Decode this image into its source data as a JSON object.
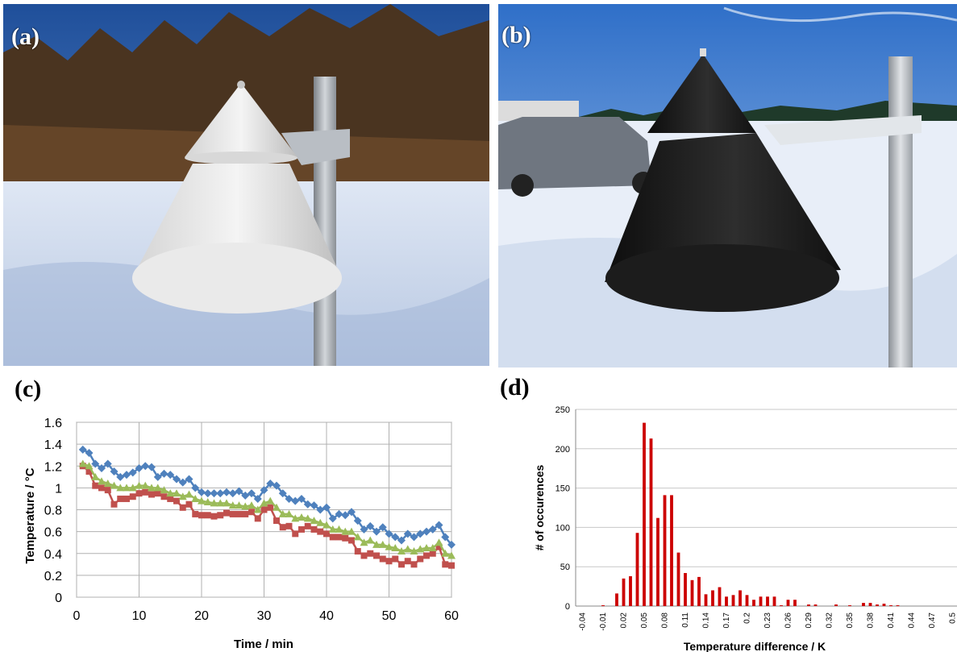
{
  "panels": {
    "a": {
      "label": "(a)"
    },
    "b": {
      "label": "(b)"
    },
    "c": {
      "label": "(c)"
    },
    "d": {
      "label": "(d)"
    }
  },
  "colors": {
    "sky_a": "#2f5fa8",
    "sky_b": "#3f7fd0",
    "snow": "#e9eef6",
    "white_cone": "#e8e8e8",
    "black_cone": "#1a1a1a",
    "pole": "#a8adb3",
    "trees": "#5a3d22",
    "blue_series": "#4f81bd",
    "red_series": "#c0504d",
    "green_series": "#9bbb59",
    "hist_bar": "#cc0000",
    "grid": "#b0b0b0"
  },
  "chart_data": [
    {
      "type": "line",
      "xlabel": "Time / min",
      "ylabel": "Temperature / °C",
      "xlim": [
        0,
        60
      ],
      "ylim": [
        0,
        1.6
      ],
      "xticks": [
        0,
        10,
        20,
        30,
        40,
        50,
        60
      ],
      "yticks": [
        "0",
        "0.2",
        "0.4",
        "0.6",
        "0.8",
        "1",
        "1.2",
        "1.4",
        "1.6"
      ],
      "grid": true,
      "legend": "none",
      "series": [
        {
          "color": "#4f81bd",
          "marker": "diamond",
          "values": [
            1.35,
            1.32,
            1.22,
            1.18,
            1.22,
            1.15,
            1.1,
            1.12,
            1.14,
            1.18,
            1.2,
            1.19,
            1.1,
            1.13,
            1.12,
            1.08,
            1.05,
            1.08,
            1.0,
            0.96,
            0.95,
            0.95,
            0.95,
            0.96,
            0.95,
            0.97,
            0.93,
            0.95,
            0.9,
            0.98,
            1.04,
            1.02,
            0.95,
            0.9,
            0.88,
            0.9,
            0.85,
            0.84,
            0.8,
            0.82,
            0.72,
            0.76,
            0.75,
            0.78,
            0.7,
            0.62,
            0.65,
            0.6,
            0.64,
            0.58,
            0.55,
            0.52,
            0.58,
            0.55,
            0.58,
            0.6,
            0.62,
            0.66,
            0.55,
            0.48
          ]
        },
        {
          "color": "#c0504d",
          "marker": "square",
          "values": [
            1.2,
            1.15,
            1.02,
            1.0,
            0.98,
            0.85,
            0.9,
            0.9,
            0.92,
            0.95,
            0.96,
            0.94,
            0.95,
            0.92,
            0.9,
            0.88,
            0.82,
            0.85,
            0.76,
            0.75,
            0.75,
            0.74,
            0.75,
            0.77,
            0.76,
            0.76,
            0.76,
            0.78,
            0.72,
            0.8,
            0.82,
            0.7,
            0.64,
            0.65,
            0.58,
            0.62,
            0.65,
            0.62,
            0.6,
            0.58,
            0.55,
            0.55,
            0.54,
            0.52,
            0.42,
            0.38,
            0.4,
            0.38,
            0.35,
            0.33,
            0.35,
            0.3,
            0.33,
            0.3,
            0.35,
            0.38,
            0.4,
            0.46,
            0.3,
            0.29
          ]
        },
        {
          "color": "#9bbb59",
          "marker": "triangle",
          "values": [
            1.22,
            1.2,
            1.1,
            1.06,
            1.04,
            1.02,
            1.0,
            1.0,
            1.0,
            1.02,
            1.02,
            1.0,
            1.0,
            0.98,
            0.95,
            0.95,
            0.92,
            0.94,
            0.9,
            0.88,
            0.87,
            0.86,
            0.86,
            0.86,
            0.84,
            0.84,
            0.83,
            0.84,
            0.8,
            0.86,
            0.88,
            0.82,
            0.76,
            0.76,
            0.72,
            0.73,
            0.72,
            0.7,
            0.68,
            0.66,
            0.62,
            0.62,
            0.6,
            0.6,
            0.55,
            0.5,
            0.52,
            0.48,
            0.48,
            0.46,
            0.45,
            0.42,
            0.44,
            0.42,
            0.44,
            0.45,
            0.45,
            0.5,
            0.4,
            0.38
          ]
        }
      ]
    },
    {
      "type": "bar",
      "xlabel": "Temperature difference / K",
      "ylabel": "# of occurences",
      "ylim": [
        0,
        250
      ],
      "yticks": [
        "0",
        "50",
        "100",
        "150",
        "200",
        "250"
      ],
      "grid": true,
      "legend": "none",
      "xtick_labels": [
        "-0.04",
        "-0.01",
        "0.02",
        "0.05",
        "0.08",
        "0.11",
        "0.14",
        "0.17",
        "0.2",
        "0.23",
        "0.26",
        "0.29",
        "0.32",
        "0.35",
        "0.38",
        "0.41",
        "0.44",
        "0.47",
        "0.5"
      ],
      "categories": [
        "-0.04",
        "-0.03",
        "-0.02",
        "-0.01",
        "0",
        "0.01",
        "0.02",
        "0.03",
        "0.04",
        "0.05",
        "0.06",
        "0.07",
        "0.08",
        "0.09",
        "0.1",
        "0.11",
        "0.12",
        "0.13",
        "0.14",
        "0.15",
        "0.16",
        "0.17",
        "0.18",
        "0.19",
        "0.2",
        "0.21",
        "0.22",
        "0.23",
        "0.24",
        "0.25",
        "0.26",
        "0.27",
        "0.28",
        "0.29",
        "0.3",
        "0.31",
        "0.32",
        "0.33",
        "0.34",
        "0.35",
        "0.36",
        "0.37",
        "0.38",
        "0.39",
        "0.4",
        "0.41",
        "0.42",
        "0.43",
        "0.44",
        "0.45",
        "0.46",
        "0.47",
        "0.48",
        "0.49",
        "0.5"
      ],
      "values": [
        0,
        0,
        0,
        1,
        0,
        16,
        35,
        38,
        93,
        233,
        213,
        112,
        141,
        141,
        68,
        42,
        33,
        37,
        15,
        20,
        24,
        12,
        14,
        20,
        14,
        8,
        12,
        12,
        12,
        1,
        8,
        8,
        0,
        2,
        2,
        0,
        0,
        2,
        0,
        1,
        0,
        4,
        4,
        2,
        3,
        1,
        1,
        0,
        0,
        0,
        0,
        0,
        0,
        0,
        0
      ]
    }
  ]
}
